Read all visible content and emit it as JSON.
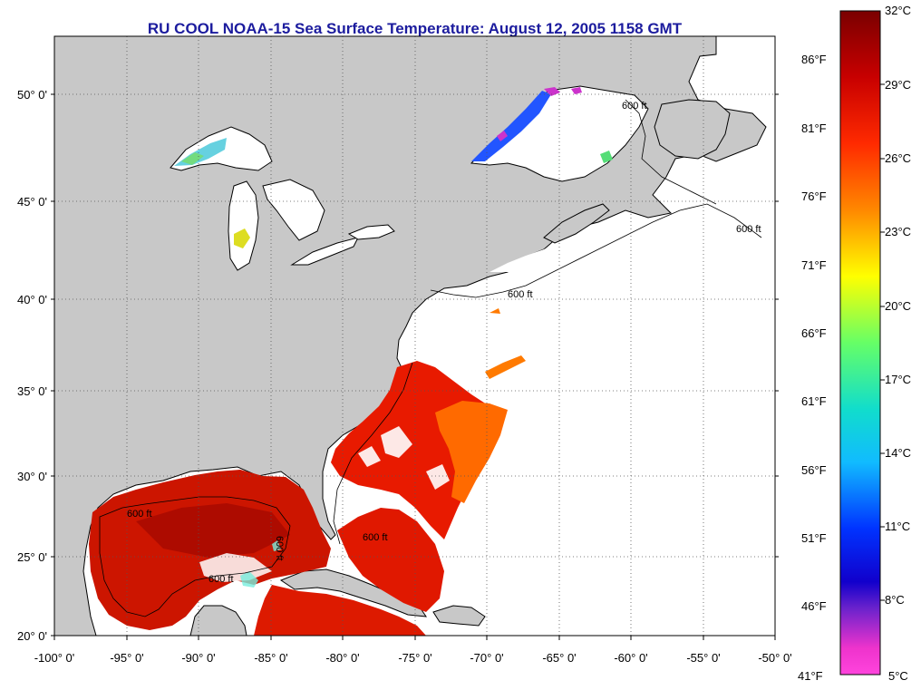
{
  "title": "RU COOL  NOAA-15  Sea Surface Temperature:  August 12, 2005 1158 GMT",
  "map": {
    "lat_labels": [
      "50° 0'",
      "45° 0'",
      "40° 0'",
      "35° 0'",
      "30° 0'",
      "25° 0'",
      "20° 0'"
    ],
    "lon_labels": [
      "-100° 0'",
      "-95° 0'",
      "-90° 0'",
      "-85° 0'",
      "-80° 0'",
      "-75° 0'",
      "-70° 0'",
      "-65° 0'",
      "-60° 0'",
      "-55° 0'",
      "-50° 0'"
    ],
    "isobath_labels": [
      "600 ft",
      "600 ft",
      "600 ft",
      "600 ft",
      "600 ft",
      "600 ft",
      "600 ft"
    ],
    "colors": {
      "land": "#c8c8c8",
      "water_no_data": "#ffffff",
      "title": "#1c1c9e"
    }
  },
  "colorbar": {
    "celsius": [
      "32°C",
      "29°C",
      "26°C",
      "23°C",
      "20°C",
      "17°C",
      "14°C",
      "11°C",
      "8°C",
      "5°C"
    ],
    "fahrenheit": [
      "86°F",
      "81°F",
      "76°F",
      "71°F",
      "66°F",
      "61°F",
      "56°F",
      "51°F",
      "46°F",
      "41°F"
    ],
    "gradient_colors": [
      "#7a0000",
      "#c80000",
      "#ff2200",
      "#ff6600",
      "#ff9900",
      "#ffcc00",
      "#ffff00",
      "#aaff33",
      "#55ee77",
      "#22ddbb",
      "#11ccee",
      "#1199ff",
      "#0044ff",
      "#1100ee",
      "#6622cc",
      "#cc33dd",
      "#ff33cc",
      "#ff66dd"
    ]
  }
}
